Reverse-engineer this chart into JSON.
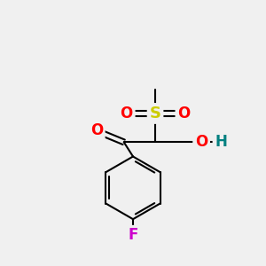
{
  "background_color": "#f0f0f0",
  "atom_colors": {
    "O": "#ff0000",
    "S": "#cccc00",
    "F": "#cc00cc",
    "H": "#008080",
    "C": "#000000"
  },
  "bond_color": "#000000",
  "bond_width": 1.5,
  "font_size_atoms": 11,
  "fig_width": 3.0,
  "fig_height": 3.0,
  "dpi": 100
}
